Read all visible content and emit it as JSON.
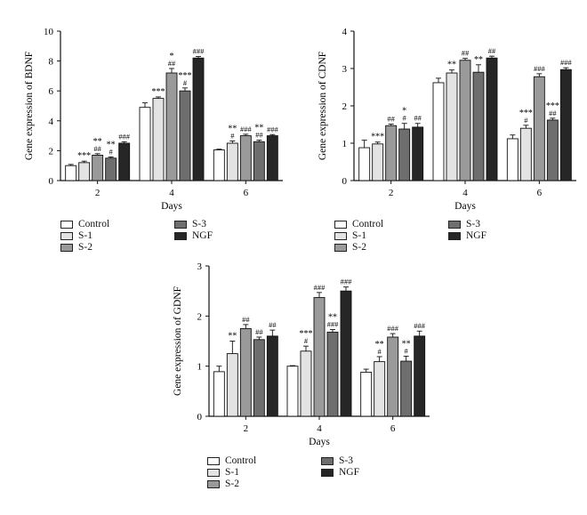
{
  "chart_data": [
    {
      "type": "bar",
      "panel": "bdnf",
      "ylabel": "Gene expression of BDNF",
      "xlabel": "Days",
      "categories": [
        "2",
        "4",
        "6"
      ],
      "ylim": [
        0,
        10
      ],
      "yticks": [
        "0",
        "2",
        "4",
        "6",
        "8",
        "10"
      ],
      "series": [
        {
          "name": "Control",
          "values": [
            1.0,
            4.9,
            2.05
          ],
          "errors": [
            0.08,
            0.3,
            0.05
          ],
          "annotations": [
            "",
            "",
            ""
          ]
        },
        {
          "name": "S-1",
          "values": [
            1.2,
            5.5,
            2.5
          ],
          "errors": [
            0.1,
            0.1,
            0.15
          ],
          "annotations": [
            "***",
            "***",
            "**\n#"
          ]
        },
        {
          "name": "S-2",
          "values": [
            1.7,
            7.2,
            3.0
          ],
          "errors": [
            0.1,
            0.3,
            0.1
          ],
          "annotations": [
            "**\n##",
            "*\n##",
            "###"
          ]
        },
        {
          "name": "S-3",
          "values": [
            1.5,
            6.0,
            2.6
          ],
          "errors": [
            0.08,
            0.2,
            0.1
          ],
          "annotations": [
            "**\n#",
            "***\n#",
            "**\n##"
          ]
        },
        {
          "name": "NGF",
          "values": [
            2.5,
            8.2,
            3.0
          ],
          "errors": [
            0.1,
            0.1,
            0.08
          ],
          "annotations": [
            "###",
            "###",
            "###"
          ]
        }
      ],
      "legend": "below"
    },
    {
      "type": "bar",
      "panel": "cdnf",
      "ylabel": "Gene expression of CDNF",
      "xlabel": "Days",
      "categories": [
        "2",
        "4",
        "6"
      ],
      "ylim": [
        0,
        4
      ],
      "yticks": [
        "0",
        "1",
        "2",
        "3",
        "4"
      ],
      "series": [
        {
          "name": "Control",
          "values": [
            0.88,
            2.62,
            1.12
          ],
          "errors": [
            0.2,
            0.12,
            0.1
          ],
          "annotations": [
            "",
            "",
            ""
          ]
        },
        {
          "name": "S-1",
          "values": [
            0.98,
            2.88,
            1.4
          ],
          "errors": [
            0.05,
            0.08,
            0.08
          ],
          "annotations": [
            "***",
            "**",
            "***\n#"
          ]
        },
        {
          "name": "S-2",
          "values": [
            1.47,
            3.22,
            2.78
          ],
          "errors": [
            0.04,
            0.05,
            0.08
          ],
          "annotations": [
            "##",
            "##",
            "###"
          ]
        },
        {
          "name": "S-3",
          "values": [
            1.38,
            2.9,
            1.62
          ],
          "errors": [
            0.15,
            0.2,
            0.05
          ],
          "annotations": [
            "*\n#",
            "**",
            "***\n##"
          ]
        },
        {
          "name": "NGF",
          "values": [
            1.43,
            3.28,
            2.97
          ],
          "errors": [
            0.1,
            0.05,
            0.05
          ],
          "annotations": [
            "##",
            "##",
            "###"
          ]
        }
      ],
      "legend": "below"
    },
    {
      "type": "bar",
      "panel": "gdnf",
      "ylabel": "Gene expression of GDNF",
      "xlabel": "Days",
      "categories": [
        "2",
        "4",
        "6"
      ],
      "ylim": [
        0,
        3
      ],
      "yticks": [
        "0",
        "1",
        "2",
        "3"
      ],
      "series": [
        {
          "name": "Control",
          "values": [
            0.89,
            1.0,
            0.88
          ],
          "errors": [
            0.11,
            0.01,
            0.06
          ],
          "annotations": [
            "",
            "",
            ""
          ]
        },
        {
          "name": "S-1",
          "values": [
            1.25,
            1.3,
            1.09
          ],
          "errors": [
            0.25,
            0.1,
            0.1
          ],
          "annotations": [
            "**",
            "***\n#",
            "**\n#"
          ]
        },
        {
          "name": "S-2",
          "values": [
            1.75,
            2.37,
            1.58
          ],
          "errors": [
            0.08,
            0.1,
            0.07
          ],
          "annotations": [
            "##",
            "###",
            "###"
          ]
        },
        {
          "name": "S-3",
          "values": [
            1.53,
            1.68,
            1.1
          ],
          "errors": [
            0.05,
            0.05,
            0.1
          ],
          "annotations": [
            "##",
            "**\n###",
            "**\n#"
          ]
        },
        {
          "name": "NGF",
          "values": [
            1.6,
            2.5,
            1.6
          ],
          "errors": [
            0.12,
            0.08,
            0.1
          ],
          "annotations": [
            "##",
            "###",
            "###"
          ]
        }
      ],
      "legend": "below"
    }
  ],
  "colors": {
    "Control": "#ffffff",
    "S-1": "#e3e3e3",
    "S-2": "#9a9a9a",
    "S-3": "#6e6e6e",
    "NGF": "#262626"
  }
}
